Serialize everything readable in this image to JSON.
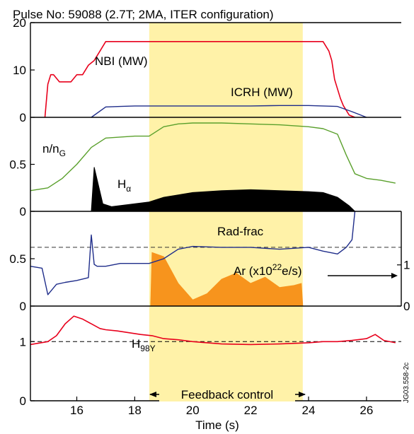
{
  "chart_data": {
    "type": "line",
    "title": "Pulse No: 59088 (2.7T; 2MA, ITER configuration)",
    "xlabel": "Time (s)",
    "x_ticks": [
      "16",
      "18",
      "20",
      "22",
      "24",
      "26"
    ],
    "xlim": [
      14.4,
      27.2
    ],
    "shaded_region": {
      "x": [
        18.5,
        23.8
      ],
      "color": "#fff2a8"
    },
    "feedback_label": "Feedback control",
    "watermark": "JG03.558-2c",
    "colors": {
      "nbi": "#e8001c",
      "icrh": "#1f2d8a",
      "ng": "#5aa02c",
      "halpha": "#000000",
      "radfrac": "#1f2d8a",
      "ar": "#f7941d",
      "h98": "#e8001c"
    },
    "panels": [
      {
        "id": "heating",
        "y_ticks": [
          "0",
          "10",
          "20"
        ],
        "ylim": [
          0,
          20
        ],
        "series": [
          {
            "name": "NBI (MW)",
            "x": [
              14.9,
              15.0,
              15.1,
              15.2,
              15.4,
              15.6,
              15.8,
              16.0,
              16.2,
              16.4,
              16.6,
              16.8,
              17.0,
              17.5,
              18.0,
              19.0,
              20.0,
              21.0,
              22.0,
              23.0,
              24.0,
              24.5,
              24.7,
              24.8,
              24.9,
              25.0,
              25.1,
              25.2,
              25.3,
              25.4,
              25.6
            ],
            "y": [
              0,
              7,
              9,
              9,
              7.5,
              7.5,
              7.5,
              9,
              9,
              11,
              12,
              14,
              16,
              16,
              16,
              16,
              16,
              16,
              16,
              16,
              16,
              16,
              14,
              12,
              8,
              6,
              4,
              2.5,
              1.5,
              0.5,
              0
            ]
          },
          {
            "name": "ICRH (MW)",
            "x": [
              16.5,
              17.0,
              17.5,
              18.0,
              19.0,
              20.0,
              21.0,
              22.0,
              23.0,
              24.0,
              24.5,
              25.0,
              25.5,
              26.0
            ],
            "y": [
              0,
              2.2,
              2.3,
              2.4,
              2.4,
              2.4,
              2.4,
              2.4,
              2.5,
              2.5,
              2.4,
              2.3,
              1.2,
              0
            ]
          }
        ]
      },
      {
        "id": "density",
        "y_ticks": [
          "0",
          "0.5"
        ],
        "ylim": [
          0,
          1.0
        ],
        "series": [
          {
            "name": "n/nG",
            "x": [
              14.4,
              15.0,
              15.5,
              16.0,
              16.5,
              17.0,
              17.5,
              18.0,
              18.5,
              19.0,
              19.5,
              20.0,
              21.0,
              22.0,
              23.0,
              24.0,
              24.5,
              25.0,
              25.3,
              25.6,
              26.0,
              26.5,
              27.0
            ],
            "y": [
              0.22,
              0.25,
              0.35,
              0.5,
              0.68,
              0.78,
              0.79,
              0.8,
              0.8,
              0.9,
              0.93,
              0.94,
              0.94,
              0.93,
              0.92,
              0.9,
              0.88,
              0.82,
              0.6,
              0.4,
              0.35,
              0.33,
              0.3
            ]
          },
          {
            "name": "Hα",
            "x": [
              14.4,
              16.5,
              16.6,
              16.9,
              17.2,
              18.5,
              19.0,
              20.0,
              21.0,
              22.0,
              23.0,
              24.0,
              24.5,
              25.0,
              25.4,
              25.6,
              27.0
            ],
            "y": [
              0,
              0,
              0.47,
              0.08,
              0.05,
              0.1,
              0.15,
              0.2,
              0.22,
              0.23,
              0.22,
              0.21,
              0.2,
              0.15,
              0.06,
              0,
              0
            ]
          }
        ]
      },
      {
        "id": "radiation",
        "y_ticks": [
          "0",
          "0.5"
        ],
        "ylim": [
          0,
          1.0
        ],
        "y2_ticks": [
          "0",
          "1"
        ],
        "y2lim": [
          0,
          2.3
        ],
        "dashed_y": 0.62,
        "series": [
          {
            "name": "Rad-frac",
            "x": [
              14.4,
              14.8,
              15.0,
              15.3,
              15.6,
              16.0,
              16.4,
              16.5,
              16.6,
              16.7,
              17.0,
              17.5,
              18.0,
              18.5,
              19.0,
              19.5,
              20.0,
              21.0,
              22.0,
              23.0,
              24.0,
              24.5,
              25.0,
              25.3,
              25.5,
              25.6
            ],
            "y": [
              0.42,
              0.4,
              0.12,
              0.23,
              0.25,
              0.27,
              0.3,
              0.75,
              0.44,
              0.42,
              0.42,
              0.45,
              0.45,
              0.45,
              0.5,
              0.6,
              0.63,
              0.62,
              0.62,
              0.6,
              0.62,
              0.58,
              0.55,
              0.62,
              0.7,
              1.0
            ]
          },
          {
            "name": "Ar (x10²²e/s)",
            "x": [
              18.55,
              18.6,
              19.0,
              19.5,
              20.0,
              20.5,
              21.0,
              21.5,
              22.0,
              22.5,
              23.0,
              23.5,
              23.75,
              23.8
            ],
            "y": [
              0,
              1.3,
              1.2,
              0.55,
              0.15,
              0.3,
              0.65,
              0.8,
              0.55,
              0.7,
              0.45,
              0.5,
              0.55,
              0
            ]
          }
        ]
      },
      {
        "id": "confinement",
        "y_ticks": [
          "0",
          "1"
        ],
        "ylim": [
          0,
          1.6
        ],
        "dashed_y": 1.0,
        "series": [
          {
            "name": "H98Y",
            "x": [
              14.4,
              15.0,
              15.3,
              15.6,
              15.9,
              16.2,
              16.5,
              16.8,
              17.0,
              17.4,
              17.8,
              18.2,
              18.6,
              19.0,
              19.5,
              20.0,
              20.5,
              21.0,
              22.0,
              23.0,
              24.0,
              24.5,
              25.0,
              25.5,
              26.0,
              26.3,
              26.6,
              27.0
            ],
            "y": [
              0.95,
              1.0,
              1.1,
              1.3,
              1.43,
              1.38,
              1.3,
              1.22,
              1.2,
              1.18,
              1.15,
              1.12,
              1.1,
              1.05,
              1.03,
              1.0,
              0.98,
              0.96,
              0.95,
              0.96,
              0.98,
              1.0,
              1.0,
              1.02,
              1.05,
              1.12,
              1.02,
              0.98
            ]
          }
        ]
      }
    ]
  }
}
